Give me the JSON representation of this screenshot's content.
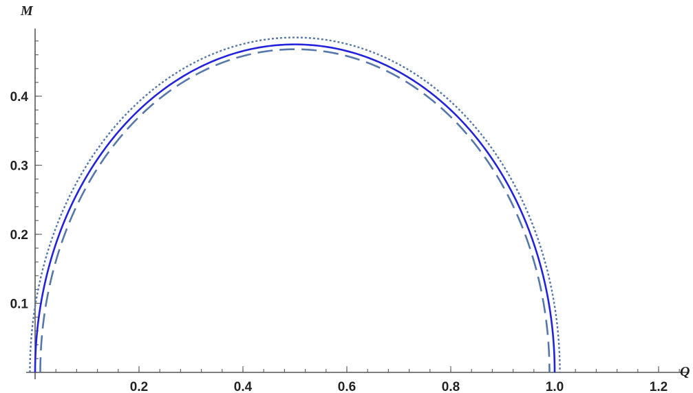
{
  "chart_data": {
    "type": "line",
    "title": "",
    "xlabel": "Q",
    "ylabel": "M",
    "xlim": [
      0,
      1.24
    ],
    "ylim": [
      0,
      0.49
    ],
    "x_ticks": [
      0.2,
      0.4,
      0.6,
      0.8,
      1.0,
      1.2
    ],
    "x_tick_labels": [
      "0.2",
      "0.4",
      "0.6",
      "0.8",
      "1.0",
      "1.2"
    ],
    "y_ticks": [
      0.1,
      0.2,
      0.3,
      0.4
    ],
    "y_tick_labels": [
      "0.1",
      "0.2",
      "0.3",
      "0.4"
    ],
    "grid": false,
    "legend": "none",
    "series": [
      {
        "style": "solid",
        "color": "#2222dd",
        "shape": "semicircle",
        "x_range": [
          0.0,
          1.0
        ],
        "center": [
          0.5,
          0.0
        ],
        "peak": 0.475,
        "points": [
          [
            0.0,
            0.0
          ],
          [
            0.05,
            0.143
          ],
          [
            0.1,
            0.29
          ],
          [
            0.2,
            0.39
          ],
          [
            0.3,
            0.441
          ],
          [
            0.4,
            0.469
          ],
          [
            0.5,
            0.475
          ],
          [
            0.6,
            0.469
          ],
          [
            0.7,
            0.441
          ],
          [
            0.8,
            0.39
          ],
          [
            0.9,
            0.29
          ],
          [
            0.95,
            0.143
          ],
          [
            1.0,
            0.0
          ]
        ]
      },
      {
        "style": "dotted",
        "color": "#5577aa",
        "shape": "semicircle",
        "x_range": [
          -0.01,
          1.01
        ],
        "center": [
          0.5,
          0.0
        ],
        "peak": 0.485,
        "points": [
          [
            -0.01,
            0.0
          ],
          [
            0.05,
            0.151
          ],
          [
            0.1,
            0.29
          ],
          [
            0.2,
            0.396
          ],
          [
            0.3,
            0.449
          ],
          [
            0.4,
            0.477
          ],
          [
            0.5,
            0.485
          ],
          [
            0.6,
            0.477
          ],
          [
            0.7,
            0.449
          ],
          [
            0.8,
            0.396
          ],
          [
            0.9,
            0.29
          ],
          [
            0.95,
            0.151
          ],
          [
            1.01,
            0.0
          ]
        ]
      },
      {
        "style": "dashed",
        "color": "#5577aa",
        "shape": "semicircle",
        "x_range": [
          0.01,
          0.99
        ],
        "center": [
          0.5,
          0.0
        ],
        "peak": 0.468,
        "points": [
          [
            0.01,
            0.0
          ],
          [
            0.05,
            0.136
          ],
          [
            0.1,
            0.26
          ],
          [
            0.2,
            0.383
          ],
          [
            0.3,
            0.435
          ],
          [
            0.4,
            0.462
          ],
          [
            0.5,
            0.468
          ],
          [
            0.6,
            0.462
          ],
          [
            0.7,
            0.435
          ],
          [
            0.8,
            0.383
          ],
          [
            0.9,
            0.26
          ],
          [
            0.95,
            0.136
          ],
          [
            0.99,
            0.0
          ]
        ]
      }
    ]
  }
}
